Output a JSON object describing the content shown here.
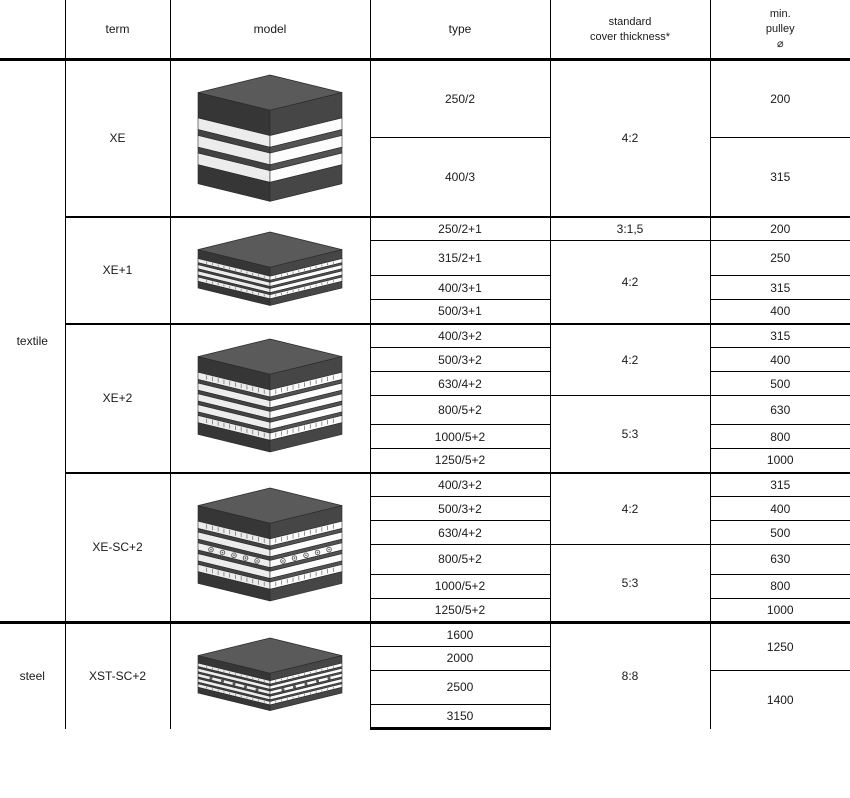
{
  "headers": {
    "term": "term",
    "model": "model",
    "type": "type",
    "cover": "standard\ncover thickness*",
    "pulley": "min.\npulley\n⌀"
  },
  "categories": [
    {
      "name": "textile",
      "groups": [
        {
          "term": "XE",
          "model": {
            "layers": 3,
            "show_dots": false,
            "show_ribbed": false
          },
          "rows": [
            {
              "type": "250/2",
              "cover": "4:2",
              "pulley": "200"
            },
            {
              "type": "400/3",
              "cover": "4:2",
              "pulley": "315"
            }
          ],
          "cover_spans": [
            2
          ],
          "pulley_spans": [
            1,
            1
          ],
          "tall": true
        },
        {
          "term": "XE+1",
          "model": {
            "layers": 4,
            "show_dots": false,
            "show_ribbed": true
          },
          "rows": [
            {
              "type": "250/2+1",
              "cover": "3:1,5",
              "pulley": "200"
            },
            {
              "type": "315/2+1",
              "cover": "4:2",
              "pulley": "250"
            },
            {
              "type": "400/3+1",
              "pulley": "315"
            },
            {
              "type": "500/3+1",
              "pulley": "400"
            }
          ],
          "cover_spans": [
            1,
            3
          ],
          "pulley_spans": [
            1,
            1,
            1,
            1
          ]
        },
        {
          "term": "XE+2",
          "model": {
            "layers": 5,
            "show_dots": false,
            "show_ribbed": true
          },
          "rows": [
            {
              "type": "400/3+2",
              "cover": "4:2",
              "pulley": "315"
            },
            {
              "type": "500/3+2",
              "pulley": "400"
            },
            {
              "type": "630/4+2",
              "pulley": "500"
            },
            {
              "type": "800/5+2",
              "cover": "5:3",
              "pulley": "630"
            },
            {
              "type": "1000/5+2",
              "pulley": "800"
            },
            {
              "type": "1250/5+2",
              "pulley": "1000"
            }
          ],
          "cover_spans": [
            3,
            3
          ],
          "pulley_spans": [
            1,
            1,
            1,
            1,
            1,
            1
          ]
        },
        {
          "term": "XE-SC+2",
          "model": {
            "layers": 5,
            "show_dots": true,
            "show_ribbed": true
          },
          "rows": [
            {
              "type": "400/3+2",
              "cover": "4:2",
              "pulley": "315"
            },
            {
              "type": "500/3+2",
              "pulley": "400"
            },
            {
              "type": "630/4+2",
              "pulley": "500"
            },
            {
              "type": "800/5+2",
              "cover": "5:3",
              "pulley": "630"
            },
            {
              "type": "1000/5+2",
              "pulley": "800"
            },
            {
              "type": "1250/5+2",
              "pulley": "1000"
            }
          ],
          "cover_spans": [
            3,
            3
          ],
          "pulley_spans": [
            1,
            1,
            1,
            1,
            1,
            1
          ]
        }
      ]
    },
    {
      "name": "steel",
      "groups": [
        {
          "term": "XST-SC+2",
          "model": {
            "layers": 5,
            "show_dots": true,
            "show_ribbed": true,
            "steel": true
          },
          "rows": [
            {
              "type": "1600",
              "cover": "8:8",
              "pulley": "1250"
            },
            {
              "type": "2000"
            },
            {
              "type": "2500",
              "pulley": "1400"
            },
            {
              "type": "3150"
            }
          ],
          "cover_spans": [
            4
          ],
          "pulley_spans": [
            2,
            2
          ]
        }
      ]
    }
  ],
  "style": {
    "colors": {
      "line": "#000000",
      "text": "#1a1a1a",
      "belt_top": "#5a5a5a",
      "belt_side": "#3e3e3e",
      "belt_white": "#f4f4f4",
      "belt_mid_dark": "#4a4a4a",
      "belt_stroke": "#2a2a2a"
    },
    "font_size": 12
  }
}
